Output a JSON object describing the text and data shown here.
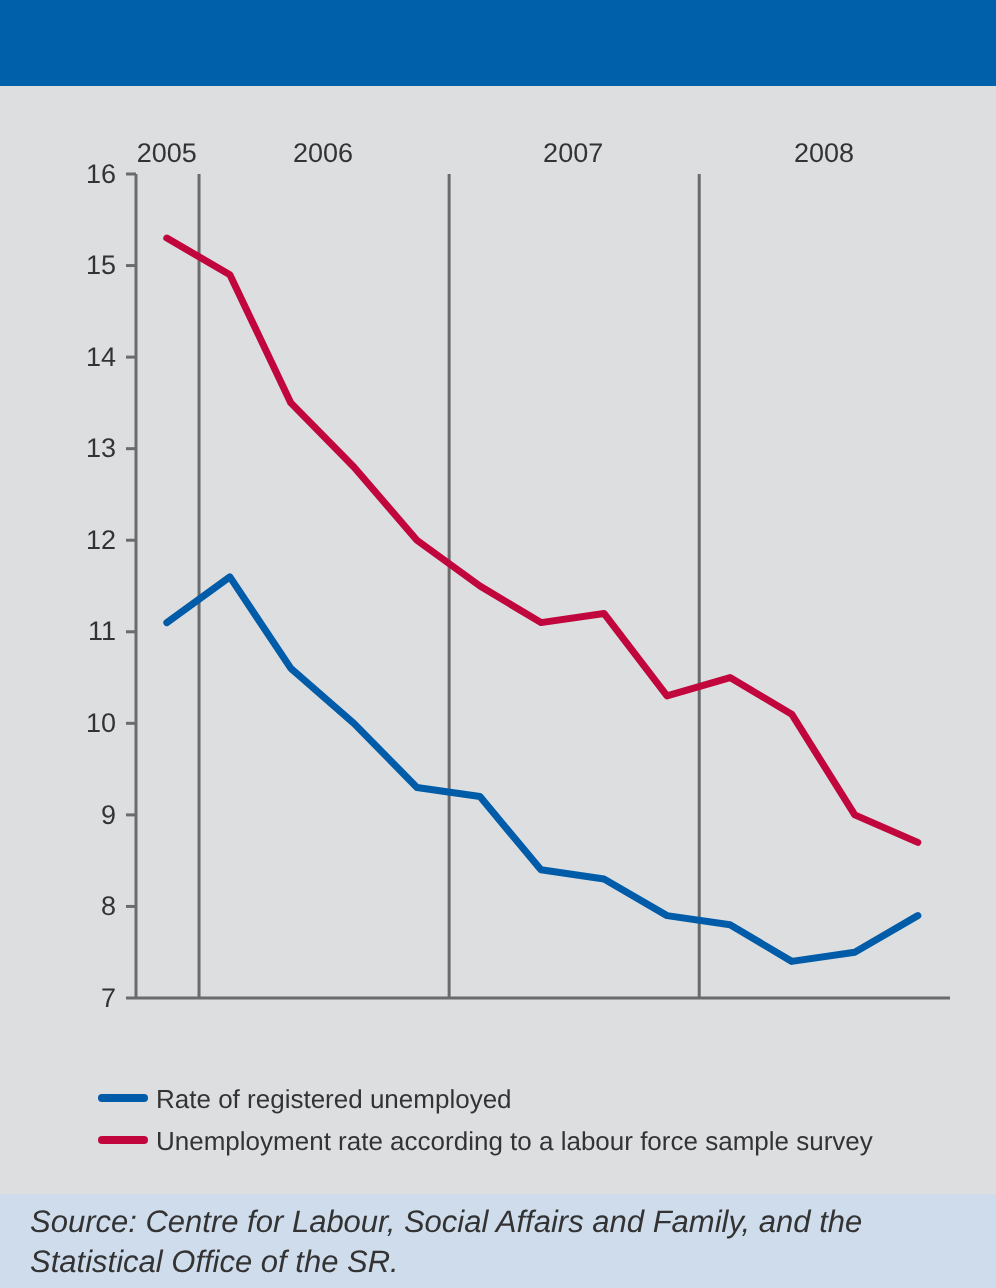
{
  "chart_data": {
    "type": "line",
    "x": [
      "2005-11-15",
      "2006-02-15",
      "2006-05-15",
      "2006-08-15",
      "2006-11-15",
      "2007-02-15",
      "2007-05-15",
      "2007-08-15",
      "2007-11-15",
      "2008-02-15",
      "2008-05-15",
      "2008-08-15",
      "2008-11-15"
    ],
    "series": [
      {
        "name": "Rate of registered unemployed",
        "color": "#005ca9",
        "values": [
          11.1,
          11.6,
          10.6,
          10.0,
          9.3,
          9.2,
          8.4,
          8.3,
          7.9,
          7.8,
          7.4,
          7.5,
          7.9
        ]
      },
      {
        "name": "Unemployment rate according to a labour force sample survey",
        "color": "#c1063e",
        "values": [
          15.3,
          14.9,
          13.5,
          12.8,
          12.0,
          11.5,
          11.1,
          11.2,
          10.3,
          10.5,
          10.1,
          9.0,
          8.7
        ]
      }
    ],
    "xlim": [
      "2005-10-01",
      "2009-01-01"
    ],
    "xticks": [
      {
        "value": "2005-11-15",
        "label": "2005"
      },
      {
        "value": "2006-07-01",
        "label": "2006"
      },
      {
        "value": "2007-07-01",
        "label": "2007"
      },
      {
        "value": "2008-07-01",
        "label": "2008"
      }
    ],
    "ylim": [
      7,
      16
    ],
    "yticks": [
      7,
      8,
      9,
      10,
      11,
      12,
      13,
      14,
      15,
      16
    ],
    "ref_lines": [
      {
        "axis": "x",
        "value": "2006-01-01",
        "color": "#6b6b6b"
      },
      {
        "axis": "x",
        "value": "2007-01-01",
        "color": "#6b6b6b"
      },
      {
        "axis": "x",
        "value": "2008-01-01",
        "color": "#6b6b6b"
      }
    ],
    "legend": "bottom",
    "line_style": "solid",
    "annotations": [
      "Source: Centre for Labour, Social Affairs and Family, and the Statistical Office of the SR."
    ]
  }
}
